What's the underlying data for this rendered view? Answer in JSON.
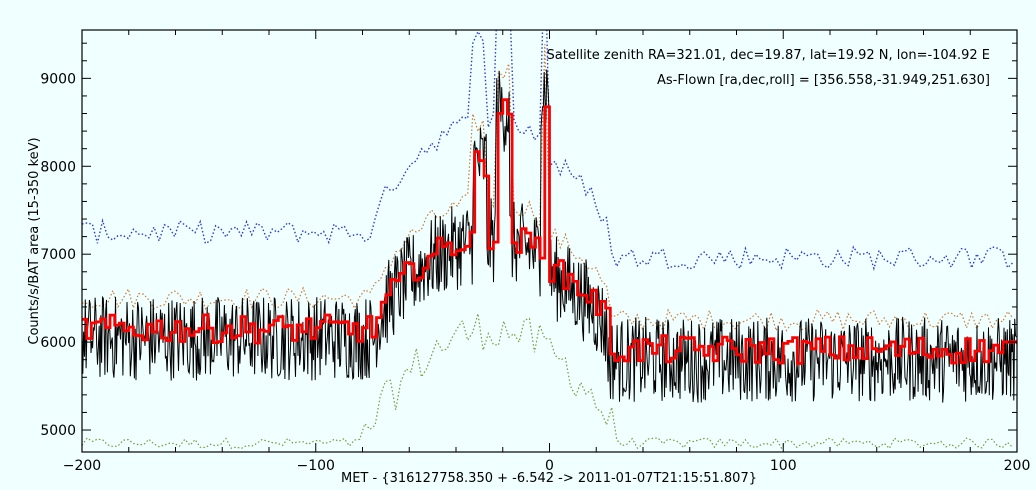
{
  "chart_data": {
    "type": "line",
    "xlabel": "MET - {316127758.350 + -6.542 -> 2011-01-07T21:15:51.807}",
    "ylabel": "Counts/s/BAT area (15-350 keV)",
    "xlim": [
      -200,
      200
    ],
    "ylim": [
      4750,
      9550
    ],
    "x_ticks": [
      -200,
      -100,
      0,
      100,
      200
    ],
    "y_ticks": [
      5000,
      6000,
      7000,
      8000,
      9000
    ],
    "annotations": [
      "Satellite zenith RA=321.01, dec=19.87, lat=19.92 N, lon=-104.92 E",
      "As-Flown [ra,dec,roll] = [356.558,-31.949,251.630]"
    ],
    "series": [
      {
        "style": "black-noisy",
        "color": "#000000",
        "base": 6050,
        "band": 700
      },
      {
        "style": "red-binned",
        "color": "#ff0000",
        "base": 6150,
        "band": 160
      },
      {
        "style": "blue-dotted",
        "color": "#2a3bd8",
        "base": 7250,
        "band": 260
      },
      {
        "style": "orange-dotted",
        "color": "#cc7a33",
        "base": 6500,
        "band": 250
      },
      {
        "style": "green-dotted",
        "color": "#7a9a30",
        "base": 4850,
        "band": 120
      }
    ],
    "burst_peak_x": [
      -20,
      -2
    ]
  }
}
